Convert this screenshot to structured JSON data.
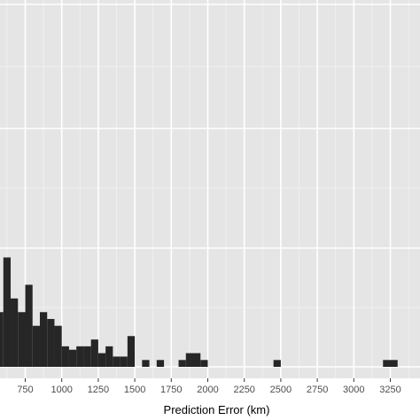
{
  "chart_data": {
    "type": "bar",
    "subtype": "histogram",
    "xlabel": "Prediction Error (km)",
    "ylabel": "",
    "x_tick_labels": [
      "750",
      "1000",
      "1250",
      "1500",
      "1750",
      "2000",
      "2250",
      "2500",
      "2750",
      "3000",
      "3250"
    ],
    "x_ticks": [
      750,
      1000,
      1250,
      1500,
      1750,
      2000,
      2250,
      2500,
      2750,
      3000,
      3250
    ],
    "xlim": [
      520,
      3340
    ],
    "ylim": [
      0,
      5.3
    ],
    "bin_width": 50,
    "bins": [
      {
        "x0": 500,
        "x1": 550,
        "count": 1.5
      },
      {
        "x0": 550,
        "x1": 600,
        "count": 0.8
      },
      {
        "x0": 600,
        "x1": 650,
        "count": 1.6
      },
      {
        "x0": 650,
        "x1": 700,
        "count": 1.0
      },
      {
        "x0": 700,
        "x1": 750,
        "count": 0.8
      },
      {
        "x0": 750,
        "x1": 800,
        "count": 1.2
      },
      {
        "x0": 800,
        "x1": 850,
        "count": 0.6
      },
      {
        "x0": 850,
        "x1": 900,
        "count": 0.8
      },
      {
        "x0": 900,
        "x1": 950,
        "count": 0.7
      },
      {
        "x0": 950,
        "x1": 1000,
        "count": 0.6
      },
      {
        "x0": 1000,
        "x1": 1050,
        "count": 0.3
      },
      {
        "x0": 1050,
        "x1": 1100,
        "count": 0.25
      },
      {
        "x0": 1100,
        "x1": 1150,
        "count": 0.3
      },
      {
        "x0": 1150,
        "x1": 1200,
        "count": 0.3
      },
      {
        "x0": 1200,
        "x1": 1250,
        "count": 0.4
      },
      {
        "x0": 1250,
        "x1": 1300,
        "count": 0.2
      },
      {
        "x0": 1300,
        "x1": 1350,
        "count": 0.3
      },
      {
        "x0": 1350,
        "x1": 1400,
        "count": 0.15
      },
      {
        "x0": 1400,
        "x1": 1450,
        "count": 0.15
      },
      {
        "x0": 1450,
        "x1": 1500,
        "count": 0.45
      },
      {
        "x0": 1550,
        "x1": 1600,
        "count": 0.1
      },
      {
        "x0": 1650,
        "x1": 1700,
        "count": 0.1
      },
      {
        "x0": 1800,
        "x1": 1850,
        "count": 0.1
      },
      {
        "x0": 1850,
        "x1": 1950,
        "count": 0.2
      },
      {
        "x0": 1950,
        "x1": 2000,
        "count": 0.1
      },
      {
        "x0": 2450,
        "x1": 2500,
        "count": 0.1
      },
      {
        "x0": 3200,
        "x1": 3300,
        "count": 0.1
      }
    ],
    "colors": {
      "panel_background": "#e5e5e5",
      "grid_major": "#ffffff",
      "grid_minor": "#f2f2f2",
      "bar_fill": "#262626",
      "tick_label": "#4d4d4d"
    },
    "grid": true,
    "legend": "none"
  }
}
